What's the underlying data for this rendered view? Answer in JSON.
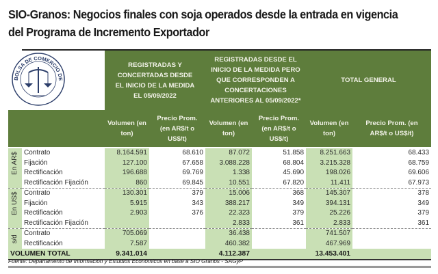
{
  "title": "SIO-Granos: Negocios finales con soja operados desde la entrada en vigencia del Programa de Incremento Exportador",
  "logo_text": "BOLSA DE COMERCIO DE ROSARIO",
  "headers": {
    "group1": "REGISTRADAS Y CONCERTADAS DESDE EL INICIO DE LA MEDIDA EL 05/09/2022",
    "group2": "REGISTRADAS DESDE EL INICIO DE LA MEDIDA PERO QUE CORRESPONDEN A CONCERTACIONES ANTERIORES AL 05/09/2022*",
    "group3": "TOTAL GENERAL",
    "vol": "Volumen (en ton)",
    "price": "Precio Prom. (en AR$/t o US$/t)"
  },
  "groups": [
    {
      "label": "En AR$",
      "rows": [
        {
          "label": "Contrato",
          "v1": "8.164.591",
          "p1": "68.610",
          "v2": "87.072",
          "p2": "51.858",
          "v3": "8.251.663",
          "p3": "68.433"
        },
        {
          "label": "Fijación",
          "v1": "127.100",
          "p1": "67.658",
          "v2": "3.088.228",
          "p2": "68.804",
          "v3": "3.215.328",
          "p3": "68.759"
        },
        {
          "label": "Rectificación",
          "v1": "196.688",
          "p1": "69.769",
          "v2": "1.338",
          "p2": "45.690",
          "v3": "198.026",
          "p3": "69.606"
        },
        {
          "label": "Rectificación Fijación",
          "v1": "860",
          "p1": "69.845",
          "v2": "10.551",
          "p2": "67.820",
          "v3": "11.411",
          "p3": "67.973"
        }
      ]
    },
    {
      "label": "En US$",
      "rows": [
        {
          "label": "Contrato",
          "v1": "130.301",
          "p1": "379",
          "v2": "15.006",
          "p2": "368",
          "v3": "145.307",
          "p3": "378"
        },
        {
          "label": "Fijación",
          "v1": "5.915",
          "p1": "343",
          "v2": "388.217",
          "p2": "349",
          "v3": "394.131",
          "p3": "349"
        },
        {
          "label": "Rectificación",
          "v1": "2.903",
          "p1": "376",
          "v2": "22.323",
          "p2": "379",
          "v3": "25.226",
          "p3": "379"
        },
        {
          "label": "Rectificación Fijación",
          "v1": "",
          "p1": "",
          "v2": "2.833",
          "p2": "361",
          "v3": "2.833",
          "p3": "361"
        }
      ]
    },
    {
      "label": "s/d",
      "rows": [
        {
          "label": "Contrato",
          "v1": "705.069",
          "p1": "",
          "v2": "36.438",
          "p2": "",
          "v3": "741.507",
          "p3": ""
        },
        {
          "label": "Rectificación",
          "v1": "7.587",
          "p1": "",
          "v2": "460.382",
          "p2": "",
          "v3": "467.969",
          "p3": ""
        }
      ]
    }
  ],
  "total": {
    "label": "VOLUMEN TOTAL",
    "v1": "9.341.014",
    "v2": "4.112.387",
    "v3": "13.453.401"
  },
  "source": "Fuente: Departamento de Información y Estudios Económicos en base a SIO Granos - SAGyP"
}
